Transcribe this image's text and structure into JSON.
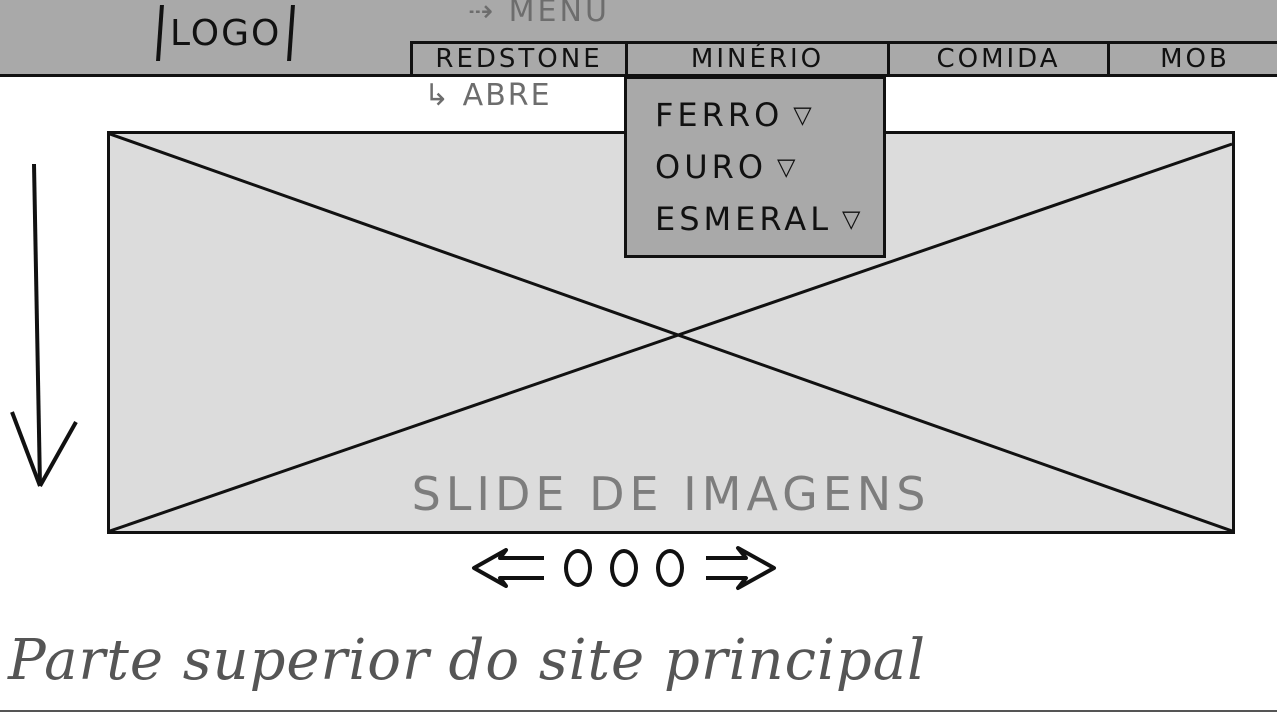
{
  "header": {
    "logo": "LOGO",
    "menu_note": "⇢ MENU"
  },
  "nav": {
    "items": [
      {
        "label": "REDSTONE"
      },
      {
        "label": "MINÉRIO"
      },
      {
        "label": "COMIDA"
      },
      {
        "label": "MOB"
      }
    ]
  },
  "annotations": {
    "opens_note": "↳ ABRE"
  },
  "dropdown": {
    "items": [
      {
        "label": "FERRO"
      },
      {
        "label": "OURO"
      },
      {
        "label": "ESMERAL"
      }
    ]
  },
  "slide": {
    "label": "SLIDE DE IMAGENS"
  },
  "carousel": {
    "dots": 3
  },
  "footer": {
    "caption": "Parte superior do site principal"
  },
  "colors": {
    "header_bg": "#a9a9a9",
    "slide_bg": "#dcdcdc",
    "ink": "#111111",
    "note": "#6d6d6d"
  },
  "icons": {
    "dropdown": "triangle-down-icon",
    "prev": "arrow-left-icon",
    "next": "arrow-right-icon",
    "scroll": "arrow-down-icon"
  }
}
